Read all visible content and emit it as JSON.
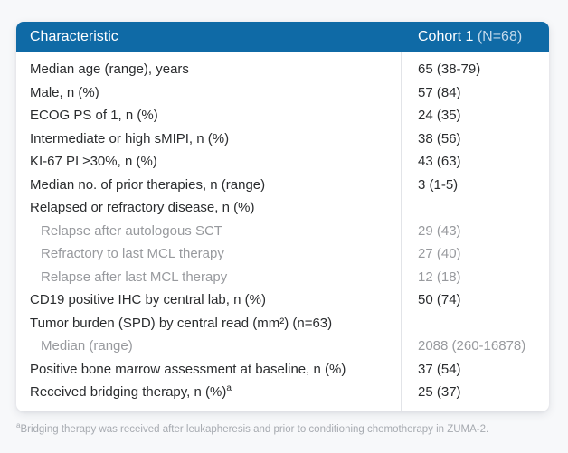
{
  "colors": {
    "header_background": "#0f6aa6",
    "header_text": "#ffffff",
    "header_n_text": "#c3d9eb",
    "main_text": "#2a2c2e",
    "sub_text": "#989a9e",
    "page_background": "#f7f8fa",
    "card_background": "#ffffff"
  },
  "header": {
    "characteristic": "Characteristic",
    "cohort": "Cohort 1 ",
    "cohort_n": "(N=68)"
  },
  "chart_data": {
    "type": "table",
    "columns": [
      "Characteristic",
      "Cohort 1 (N=68)"
    ],
    "rows": [
      {
        "label": "Median age (range), years",
        "value": "65 (38-79)",
        "style": "main"
      },
      {
        "label": "Male, n (%)",
        "value": "57 (84)",
        "style": "main"
      },
      {
        "label": "ECOG PS of 1, n (%)",
        "value": "24 (35)",
        "style": "main"
      },
      {
        "label": "Intermediate or high sMIPI, n (%)",
        "value": "38 (56)",
        "style": "main"
      },
      {
        "label": "KI-67 PI ≥30%, n (%)",
        "value": "43 (63)",
        "style": "main"
      },
      {
        "label": "Median no. of prior therapies, n (range)",
        "value": "3 (1-5)",
        "style": "main"
      },
      {
        "label": "Relapsed or refractory disease, n (%)",
        "value": "",
        "style": "main"
      },
      {
        "label": "Relapse after autologous SCT",
        "value": "29 (43)",
        "style": "sub"
      },
      {
        "label": "Refractory to last MCL therapy",
        "value": "27 (40)",
        "style": "sub"
      },
      {
        "label": "Relapse after last MCL therapy",
        "value": "12 (18)",
        "style": "sub"
      },
      {
        "label": "CD19 positive IHC by central lab, n (%)",
        "value": "50 (74)",
        "style": "main"
      },
      {
        "label": "Tumor burden (SPD) by central read (mm²) (n=63)",
        "value": "",
        "style": "main"
      },
      {
        "label": "Median (range)",
        "value": "2088 (260-16878)",
        "style": "sub"
      },
      {
        "label": "Positive bone marrow assessment at baseline, n (%)",
        "value": "37 (54)",
        "style": "main"
      },
      {
        "label": "Received bridging therapy, n (%)",
        "label_sup": "a",
        "value": "25 (37)",
        "style": "main"
      }
    ]
  },
  "footnote": {
    "sup": "a",
    "text": "Bridging therapy was received after leukapheresis and prior to conditioning chemotherapy in ZUMA-2."
  }
}
